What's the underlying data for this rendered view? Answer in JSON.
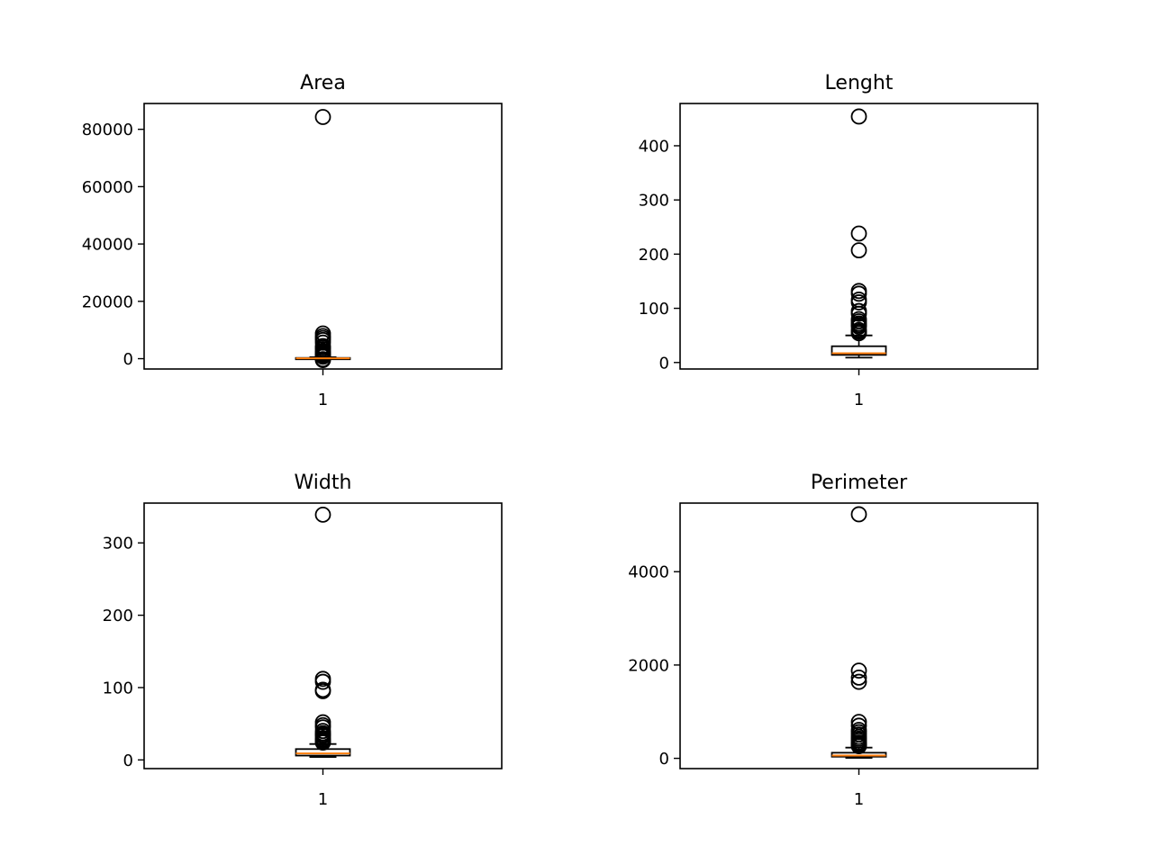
{
  "chart_data": [
    {
      "type": "box",
      "title": "Area",
      "categories": [
        "1"
      ],
      "yticks": [
        0,
        20000,
        40000,
        60000,
        80000
      ],
      "ylim": [
        -3600,
        89000
      ],
      "box": {
        "whislo": 0,
        "q1": 40,
        "med": 110,
        "q3": 260,
        "whishi": 500
      },
      "fliers": [
        84300,
        8800,
        7900,
        7200,
        6500,
        5600,
        4400,
        3900,
        3300,
        2600,
        2100,
        1700,
        1300,
        900,
        700,
        -200,
        -500
      ]
    },
    {
      "type": "box",
      "title": "Lenght",
      "categories": [
        "1"
      ],
      "yticks": [
        0,
        100,
        200,
        300,
        400
      ],
      "ylim": [
        -12,
        478
      ],
      "box": {
        "whislo": 9,
        "q1": 14,
        "med": 17,
        "q3": 30,
        "whishi": 50
      },
      "fliers": [
        454,
        238,
        207,
        132,
        127,
        116,
        111,
        95,
        90,
        80,
        76,
        72,
        69,
        66,
        60,
        57,
        54
      ]
    },
    {
      "type": "box",
      "title": "Width",
      "categories": [
        "1"
      ],
      "yticks": [
        0,
        100,
        200,
        300
      ],
      "ylim": [
        -12,
        355
      ],
      "box": {
        "whislo": 4,
        "q1": 6,
        "med": 9,
        "q3": 15,
        "whishi": 22
      },
      "fliers": [
        339,
        112,
        108,
        97,
        95,
        52,
        48,
        45,
        40,
        37,
        35,
        33,
        30,
        28,
        26,
        24
      ]
    },
    {
      "type": "box",
      "title": "Perimeter",
      "categories": [
        "1"
      ],
      "yticks": [
        0,
        2000,
        4000
      ],
      "ylim": [
        -220,
        5470
      ],
      "box": {
        "whislo": 10,
        "q1": 35,
        "med": 60,
        "q3": 120,
        "whishi": 230
      },
      "fliers": [
        5230,
        1880,
        1730,
        1640,
        780,
        700,
        610,
        560,
        510,
        460,
        420,
        380,
        340,
        310,
        280,
        260
      ]
    }
  ],
  "colors": {
    "median": "#ff7f0e",
    "outline": "#000000",
    "background": "#ffffff"
  }
}
